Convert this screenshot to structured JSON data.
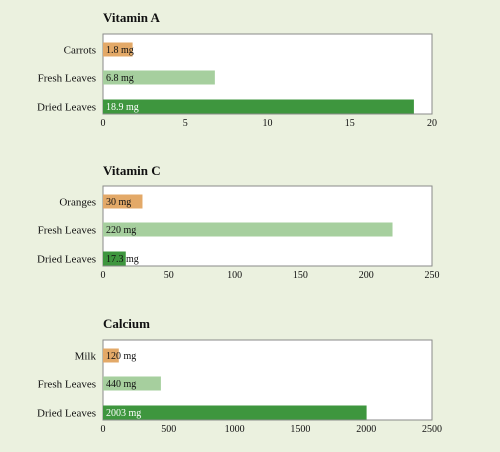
{
  "colors": {
    "background": "#ebf1df",
    "plot_bg": "#ffffff",
    "plot_border": "#8a8a8a",
    "orange": "#e3a968",
    "light_green": "#a6cf9e",
    "dark_green": "#3e963e"
  },
  "chart_data": [
    {
      "type": "bar",
      "orientation": "horizontal",
      "title": "Vitamin A",
      "categories": [
        "Carrots",
        "Fresh Leaves",
        "Dried Leaves"
      ],
      "values": [
        1.8,
        6.8,
        18.9
      ],
      "data_labels": [
        "1.8 mg",
        "6.8 mg",
        "18.9 mg"
      ],
      "bar_colors": [
        "#e3a968",
        "#a6cf9e",
        "#3e963e"
      ],
      "xlim": [
        0,
        20
      ],
      "xticks": [
        0,
        5,
        10,
        15,
        20
      ]
    },
    {
      "type": "bar",
      "orientation": "horizontal",
      "title": "Vitamin C",
      "categories": [
        "Oranges",
        "Fresh Leaves",
        "Dried Leaves"
      ],
      "values": [
        30,
        220,
        17.3
      ],
      "data_labels": [
        "30 mg",
        "220 mg",
        "17.3 mg"
      ],
      "bar_colors": [
        "#e3a968",
        "#a6cf9e",
        "#3e963e"
      ],
      "xlim": [
        0,
        250
      ],
      "xticks": [
        0,
        50,
        100,
        150,
        200,
        250
      ]
    },
    {
      "type": "bar",
      "orientation": "horizontal",
      "title": "Calcium",
      "categories": [
        "Milk",
        "Fresh Leaves",
        "Dried Leaves"
      ],
      "values": [
        120,
        440,
        2003
      ],
      "data_labels": [
        "120 mg",
        "440 mg",
        "2003 mg"
      ],
      "bar_colors": [
        "#e3a968",
        "#a6cf9e",
        "#3e963e"
      ],
      "xlim": [
        0,
        2500
      ],
      "xticks": [
        0,
        500,
        1000,
        1500,
        2000,
        2500
      ]
    }
  ]
}
